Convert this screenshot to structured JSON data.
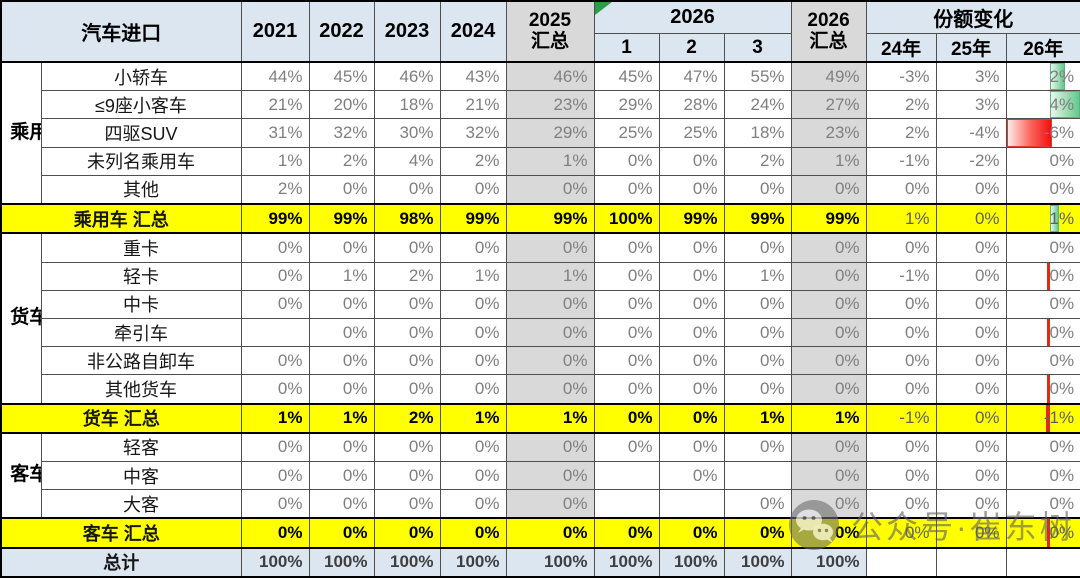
{
  "header": {
    "title": "汽车进口",
    "years": [
      "2021",
      "2022",
      "2023",
      "2024"
    ],
    "sum2025": [
      "2025",
      "汇总"
    ],
    "y2026": "2026",
    "months": [
      "1",
      "2",
      "3"
    ],
    "sum2026": [
      "2026",
      "汇总"
    ],
    "share_change": "份额变化",
    "share_years": [
      "24年",
      "25年",
      "26年"
    ]
  },
  "watermark": {
    "text": "公众号·崔东树",
    "icon": "wechat-icon"
  },
  "colors": {
    "header_blue": "#dce6f1",
    "summary_gray": "#d9d9d9",
    "subtotal_yellow": "#ffff00",
    "total_blue": "#dce6f1",
    "bar_green": "#63c98e",
    "bar_red": "#f21010",
    "corner_green": "#2a9e40"
  },
  "chart_data": {
    "type": "table",
    "title": "汽车进口",
    "columns": [
      "2021",
      "2022",
      "2023",
      "2024",
      "2025汇总",
      "2026-1",
      "2026-2",
      "2026-3",
      "2026汇总",
      "份额变化24年",
      "份额变化25年",
      "份额变化26年"
    ],
    "rows": [
      {
        "group": "乘用车",
        "group_span": 5,
        "label": "小轿车",
        "kind": "data",
        "values": [
          "44%",
          "45%",
          "46%",
          "43%",
          "46%",
          "45%",
          "47%",
          "55%",
          "49%",
          "-3%",
          "3%",
          "2%"
        ],
        "bar": {
          "dir": "pos",
          "w": 13,
          "color": "green"
        }
      },
      {
        "label": "≤9座小客车",
        "kind": "data",
        "values": [
          "21%",
          "20%",
          "18%",
          "21%",
          "23%",
          "29%",
          "28%",
          "24%",
          "27%",
          "2%",
          "3%",
          "4%"
        ],
        "bar": {
          "dir": "pos",
          "w": 28,
          "color": "green"
        }
      },
      {
        "label": "四驱SUV",
        "kind": "data",
        "values": [
          "31%",
          "32%",
          "30%",
          "32%",
          "29%",
          "25%",
          "25%",
          "18%",
          "23%",
          "2%",
          "-4%",
          "-6%"
        ],
        "bar": {
          "dir": "neg",
          "w": 43,
          "color": "red"
        }
      },
      {
        "label": "未列名乘用车",
        "kind": "data",
        "values": [
          "1%",
          "2%",
          "4%",
          "2%",
          "1%",
          "0%",
          "0%",
          "2%",
          "1%",
          "-1%",
          "-2%",
          "0%"
        ],
        "bar": null
      },
      {
        "label": "其他",
        "kind": "data",
        "values": [
          "2%",
          "0%",
          "0%",
          "0%",
          "0%",
          "0%",
          "0%",
          "0%",
          "0%",
          "0%",
          "0%",
          "0%"
        ],
        "bar": null
      },
      {
        "label": "乘用车 汇总",
        "kind": "subtotal",
        "values": [
          "99%",
          "99%",
          "98%",
          "99%",
          "99%",
          "100%",
          "99%",
          "99%",
          "99%",
          "1%",
          "0%",
          "1%"
        ],
        "bar": {
          "dir": "pos",
          "w": 7,
          "color": "green"
        }
      },
      {
        "group": "货车",
        "group_span": 6,
        "label": "重卡",
        "kind": "data",
        "values": [
          "0%",
          "0%",
          "0%",
          "0%",
          "0%",
          "0%",
          "0%",
          "0%",
          "0%",
          "0%",
          "0%",
          "0%"
        ],
        "bar": null
      },
      {
        "label": "轻卡",
        "kind": "data",
        "values": [
          "0%",
          "1%",
          "2%",
          "1%",
          "1%",
          "0%",
          "0%",
          "1%",
          "0%",
          "-1%",
          "0%",
          "0%"
        ],
        "bar": {
          "dir": "neg",
          "w": 3,
          "color": "redline"
        }
      },
      {
        "label": "中卡",
        "kind": "data",
        "values": [
          "0%",
          "0%",
          "0%",
          "0%",
          "0%",
          "0%",
          "0%",
          "0%",
          "0%",
          "0%",
          "0%",
          "0%"
        ],
        "bar": null
      },
      {
        "label": "牵引车",
        "kind": "data",
        "values": [
          "",
          "0%",
          "0%",
          "0%",
          "0%",
          "0%",
          "0%",
          "0%",
          "0%",
          "0%",
          "0%",
          "0%"
        ],
        "bar": {
          "dir": "neg",
          "w": 3,
          "color": "redline"
        }
      },
      {
        "label": "非公路自卸车",
        "kind": "data",
        "values": [
          "0%",
          "0%",
          "0%",
          "0%",
          "0%",
          "0%",
          "0%",
          "0%",
          "0%",
          "0%",
          "0%",
          "0%"
        ],
        "bar": null
      },
      {
        "label": "其他货车",
        "kind": "data",
        "values": [
          "0%",
          "0%",
          "0%",
          "0%",
          "0%",
          "0%",
          "0%",
          "0%",
          "0%",
          "0%",
          "0%",
          "0%"
        ],
        "bar": {
          "dir": "neg",
          "w": 3,
          "color": "redline"
        }
      },
      {
        "label": "货车 汇总",
        "kind": "subtotal",
        "values": [
          "1%",
          "1%",
          "2%",
          "1%",
          "1%",
          "0%",
          "0%",
          "1%",
          "1%",
          "-1%",
          "0%",
          "-1%"
        ],
        "bar": {
          "dir": "neg",
          "w": 4,
          "color": "redline"
        }
      },
      {
        "group": "客车",
        "group_span": 3,
        "label": "轻客",
        "kind": "data",
        "values": [
          "0%",
          "0%",
          "0%",
          "0%",
          "0%",
          "0%",
          "0%",
          "0%",
          "0%",
          "0%",
          "0%",
          "0%"
        ],
        "bar": null
      },
      {
        "label": "中客",
        "kind": "data",
        "values": [
          "0%",
          "0%",
          "0%",
          "0%",
          "0%",
          "",
          "0%",
          "",
          "0%",
          "0%",
          "0%",
          "0%"
        ],
        "bar": null
      },
      {
        "label": "大客",
        "kind": "data",
        "values": [
          "0%",
          "0%",
          "0%",
          "0%",
          "0%",
          "",
          "",
          "0%",
          "0%",
          "0%",
          "0%",
          "0%"
        ],
        "bar": null
      },
      {
        "label": "客车 汇总",
        "kind": "subtotal",
        "values": [
          "0%",
          "0%",
          "0%",
          "0%",
          "0%",
          "0%",
          "0%",
          "0%",
          "0%",
          "0%",
          "0%",
          "0%"
        ],
        "bar": {
          "dir": "neg",
          "w": 3,
          "color": "redline"
        }
      },
      {
        "label": "总计",
        "kind": "total",
        "values": [
          "100%",
          "100%",
          "100%",
          "100%",
          "100%",
          "100%",
          "100%",
          "100%",
          "100%",
          "",
          "",
          ""
        ],
        "bar": null
      }
    ]
  }
}
